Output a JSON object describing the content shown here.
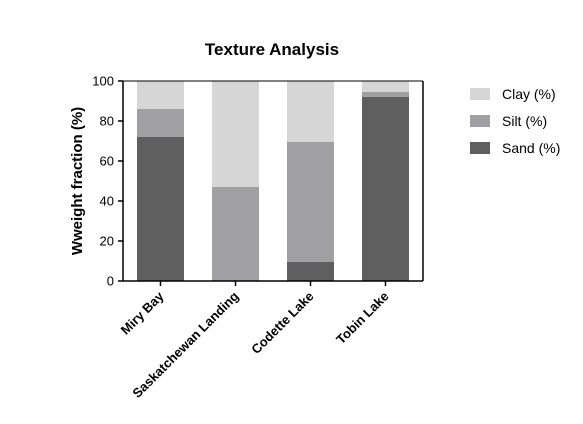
{
  "chart_data": {
    "type": "bar",
    "stacked": true,
    "title": "Texture Analysis",
    "xlabel": "",
    "ylabel": "Wweight fraction  (%)",
    "ylim": [
      0,
      100
    ],
    "yticks": [
      0,
      20,
      40,
      60,
      80,
      100
    ],
    "grid": false,
    "legend_position": "right",
    "categories": [
      "Miry Bay",
      "Saskatchewan Landing",
      "Codette Lake",
      "Tobin Lake"
    ],
    "series": [
      {
        "name": "Sand (%)",
        "color": "#5f5f5f",
        "values": [
          72,
          0,
          9.5,
          92
        ]
      },
      {
        "name": "Silt (%)",
        "color": "#a0a0a2",
        "values": [
          14,
          47,
          60,
          2.5
        ]
      },
      {
        "name": "Clay (%)",
        "color": "#d6d6d6",
        "values": [
          14,
          53,
          30.5,
          5.5
        ]
      }
    ],
    "legend_order": [
      "Clay (%)",
      "Silt (%)",
      "Sand (%)"
    ]
  }
}
